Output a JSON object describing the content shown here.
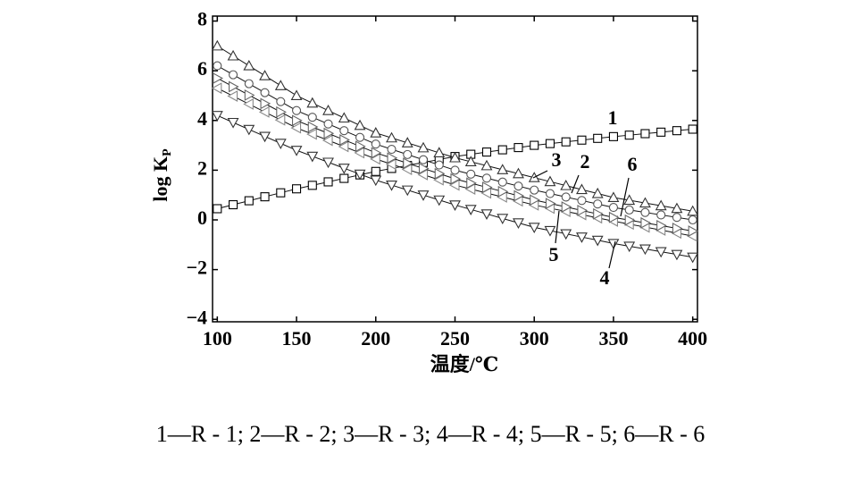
{
  "chart_data": {
    "type": "line",
    "x_label": "温度/℃",
    "y_label": "log K",
    "y_label_subscript": "P",
    "caption": "1—R - 1; 2—R - 2; 3—R - 3; 4—R - 4; 5—R - 5; 6—R - 6",
    "x": [
      100,
      110,
      120,
      130,
      140,
      150,
      160,
      170,
      180,
      190,
      200,
      210,
      220,
      230,
      240,
      250,
      260,
      270,
      280,
      290,
      300,
      310,
      320,
      330,
      340,
      350,
      360,
      370,
      380,
      390,
      400
    ],
    "xlim": [
      97,
      403
    ],
    "ylim": [
      -4.1,
      8.2
    ],
    "xticks": [
      100,
      150,
      200,
      250,
      300,
      350,
      400
    ],
    "yticks": [
      {
        "value": -4,
        "label": "−4"
      },
      {
        "value": -2,
        "label": "−2"
      },
      0,
      2,
      4,
      6,
      8
    ],
    "series": [
      {
        "name": "1",
        "color": "#000000",
        "marker": "square",
        "values": [
          0.45,
          0.61,
          0.77,
          0.93,
          1.09,
          1.25,
          1.39,
          1.53,
          1.67,
          1.81,
          1.95,
          2.07,
          2.19,
          2.31,
          2.43,
          2.55,
          2.64,
          2.73,
          2.82,
          2.91,
          3.0,
          3.07,
          3.14,
          3.21,
          3.28,
          3.35,
          3.41,
          3.47,
          3.53,
          3.59,
          3.65
        ]
      },
      {
        "name": "2",
        "color": "#555555",
        "marker": "circle",
        "values": [
          6.2,
          5.84,
          5.48,
          5.12,
          4.76,
          4.4,
          4.13,
          3.86,
          3.59,
          3.32,
          3.05,
          2.84,
          2.63,
          2.42,
          2.21,
          2.0,
          1.84,
          1.68,
          1.52,
          1.36,
          1.2,
          1.06,
          0.92,
          0.78,
          0.64,
          0.5,
          0.4,
          0.3,
          0.2,
          0.1,
          0
        ]
      },
      {
        "name": "3",
        "color": "#333333",
        "marker": "triangle-up",
        "values": [
          7.0,
          6.6,
          6.2,
          5.8,
          5.4,
          5.0,
          4.7,
          4.4,
          4.1,
          3.8,
          3.5,
          3.3,
          3.1,
          2.9,
          2.7,
          2.5,
          2.34,
          2.18,
          2.02,
          1.86,
          1.7,
          1.54,
          1.38,
          1.22,
          1.06,
          0.9,
          0.79,
          0.68,
          0.57,
          0.46,
          0.35
        ]
      },
      {
        "name": "4",
        "color": "#333333",
        "marker": "triangle-down",
        "values": [
          4.2,
          3.92,
          3.64,
          3.36,
          3.08,
          2.8,
          2.56,
          2.32,
          2.08,
          1.84,
          1.6,
          1.4,
          1.2,
          1.0,
          0.8,
          0.6,
          0.42,
          0.24,
          0.06,
          -0.12,
          -0.3,
          -0.43,
          -0.56,
          -0.69,
          -0.82,
          -0.95,
          -1.06,
          -1.17,
          -1.28,
          -1.39,
          -1.5
        ]
      },
      {
        "name": "5",
        "color": "#888888",
        "marker": "triangle-left",
        "values": [
          5.3,
          4.98,
          4.66,
          4.34,
          4.02,
          3.7,
          3.45,
          3.2,
          2.95,
          2.7,
          2.45,
          2.24,
          2.03,
          1.82,
          1.61,
          1.4,
          1.24,
          1.08,
          0.92,
          0.76,
          0.6,
          0.47,
          0.34,
          0.21,
          0.08,
          -0.05,
          -0.17,
          -0.29,
          -0.41,
          -0.53,
          -0.65
        ]
      },
      {
        "name": "6",
        "color": "#666666",
        "marker": "triangle-right",
        "values": [
          5.7,
          5.36,
          5.02,
          4.68,
          4.34,
          4.0,
          3.74,
          3.48,
          3.22,
          2.96,
          2.7,
          2.49,
          2.28,
          2.07,
          1.86,
          1.65,
          1.48,
          1.31,
          1.14,
          0.97,
          0.8,
          0.66,
          0.52,
          0.38,
          0.24,
          0.1,
          -0.01,
          -0.12,
          -0.23,
          -0.34,
          -0.45
        ]
      }
    ]
  }
}
